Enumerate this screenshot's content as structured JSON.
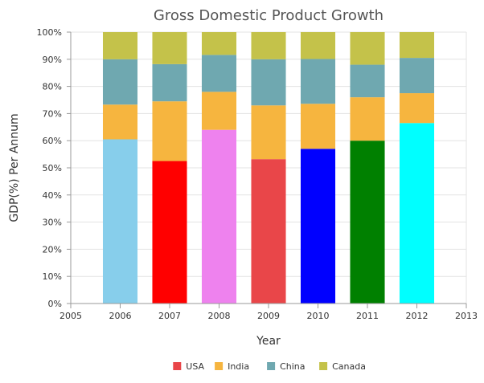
{
  "chart_data": {
    "type": "bar",
    "stacked": "100%",
    "title": "Gross Domestic Product Growth",
    "xlabel": "Year",
    "ylabel": "GDP(%) Per Annum",
    "xlim": [
      2005,
      2013
    ],
    "x_ticks": [
      "2005",
      "2006",
      "2007",
      "2008",
      "2009",
      "2010",
      "2011",
      "2012",
      "2013"
    ],
    "ylim": [
      0,
      100
    ],
    "y_ticks": [
      "0%",
      "10%",
      "20%",
      "30%",
      "40%",
      "50%",
      "60%",
      "70%",
      "80%",
      "90%",
      "100%"
    ],
    "grid": true,
    "legend_position": "bottom",
    "x": [
      2006,
      2007,
      2008,
      2009,
      2010,
      2011,
      2012
    ],
    "series": [
      {
        "name": "USA",
        "color": "#e94649",
        "values": [
          60.5,
          52.5,
          64.0,
          53.2,
          57.0,
          60.0,
          66.5
        ],
        "point_colors": [
          "#87ceeb",
          "#ff0000",
          "#ee82ee",
          "#e94649",
          "#0000ff",
          "#008000",
          "#00ffff"
        ]
      },
      {
        "name": "India",
        "color": "#f6b53f",
        "values": [
          12.8,
          22.0,
          14.0,
          19.8,
          16.6,
          16.0,
          11.0
        ]
      },
      {
        "name": "China",
        "color": "#6fa8b0",
        "values": [
          16.7,
          13.7,
          13.6,
          17.0,
          16.5,
          12.0,
          13.0
        ]
      },
      {
        "name": "Canada",
        "color": "#c4c24a",
        "values": [
          10.0,
          11.8,
          8.4,
          10.0,
          9.9,
          12.0,
          9.5
        ]
      }
    ]
  }
}
